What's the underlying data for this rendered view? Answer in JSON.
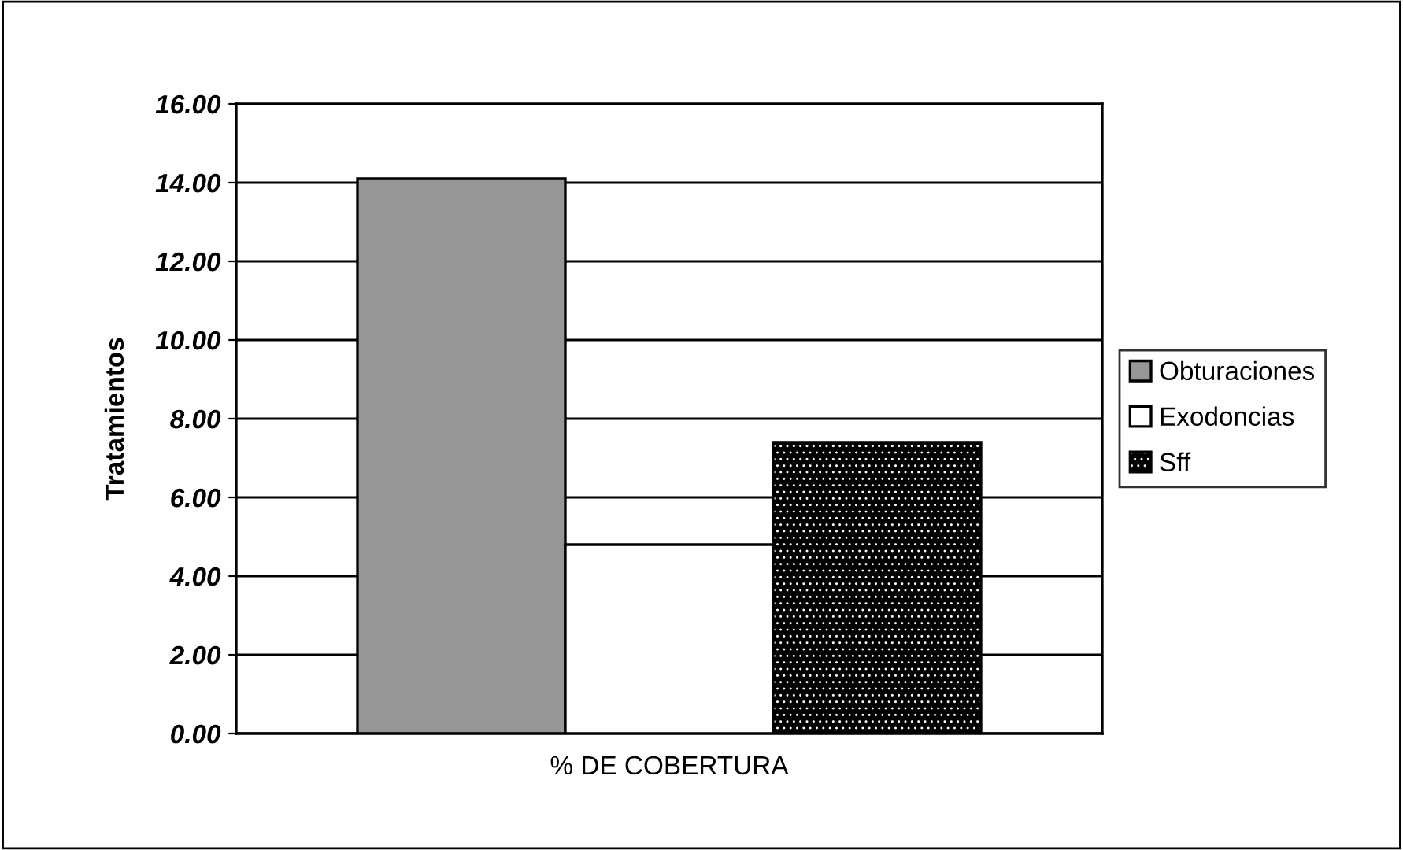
{
  "chart_data": {
    "type": "bar",
    "categories": [
      "% DE COBERTURA"
    ],
    "ylabel": "Tratamientos",
    "series": [
      {
        "name": "Obturaciones",
        "color": "#969696",
        "values": [
          14.1
        ]
      },
      {
        "name": "Exodoncias",
        "color": "#ffffff",
        "values": [
          4.8
        ]
      },
      {
        "name": "Sff",
        "color": "#000000",
        "values": [
          7.4
        ]
      }
    ],
    "ylim": [
      0,
      16
    ],
    "yticks": [
      {
        "value": 0,
        "label": "0.00"
      },
      {
        "value": 2,
        "label": "2.00"
      },
      {
        "value": 4,
        "label": "4.00"
      },
      {
        "value": 6,
        "label": "6.00"
      },
      {
        "value": 8,
        "label": "8.00"
      },
      {
        "value": 10,
        "label": "10.00"
      },
      {
        "value": 12,
        "label": "12.00"
      },
      {
        "value": 14,
        "label": "14.00"
      },
      {
        "value": 16,
        "label": "16.00"
      }
    ],
    "grid": "y",
    "legend": "right"
  }
}
